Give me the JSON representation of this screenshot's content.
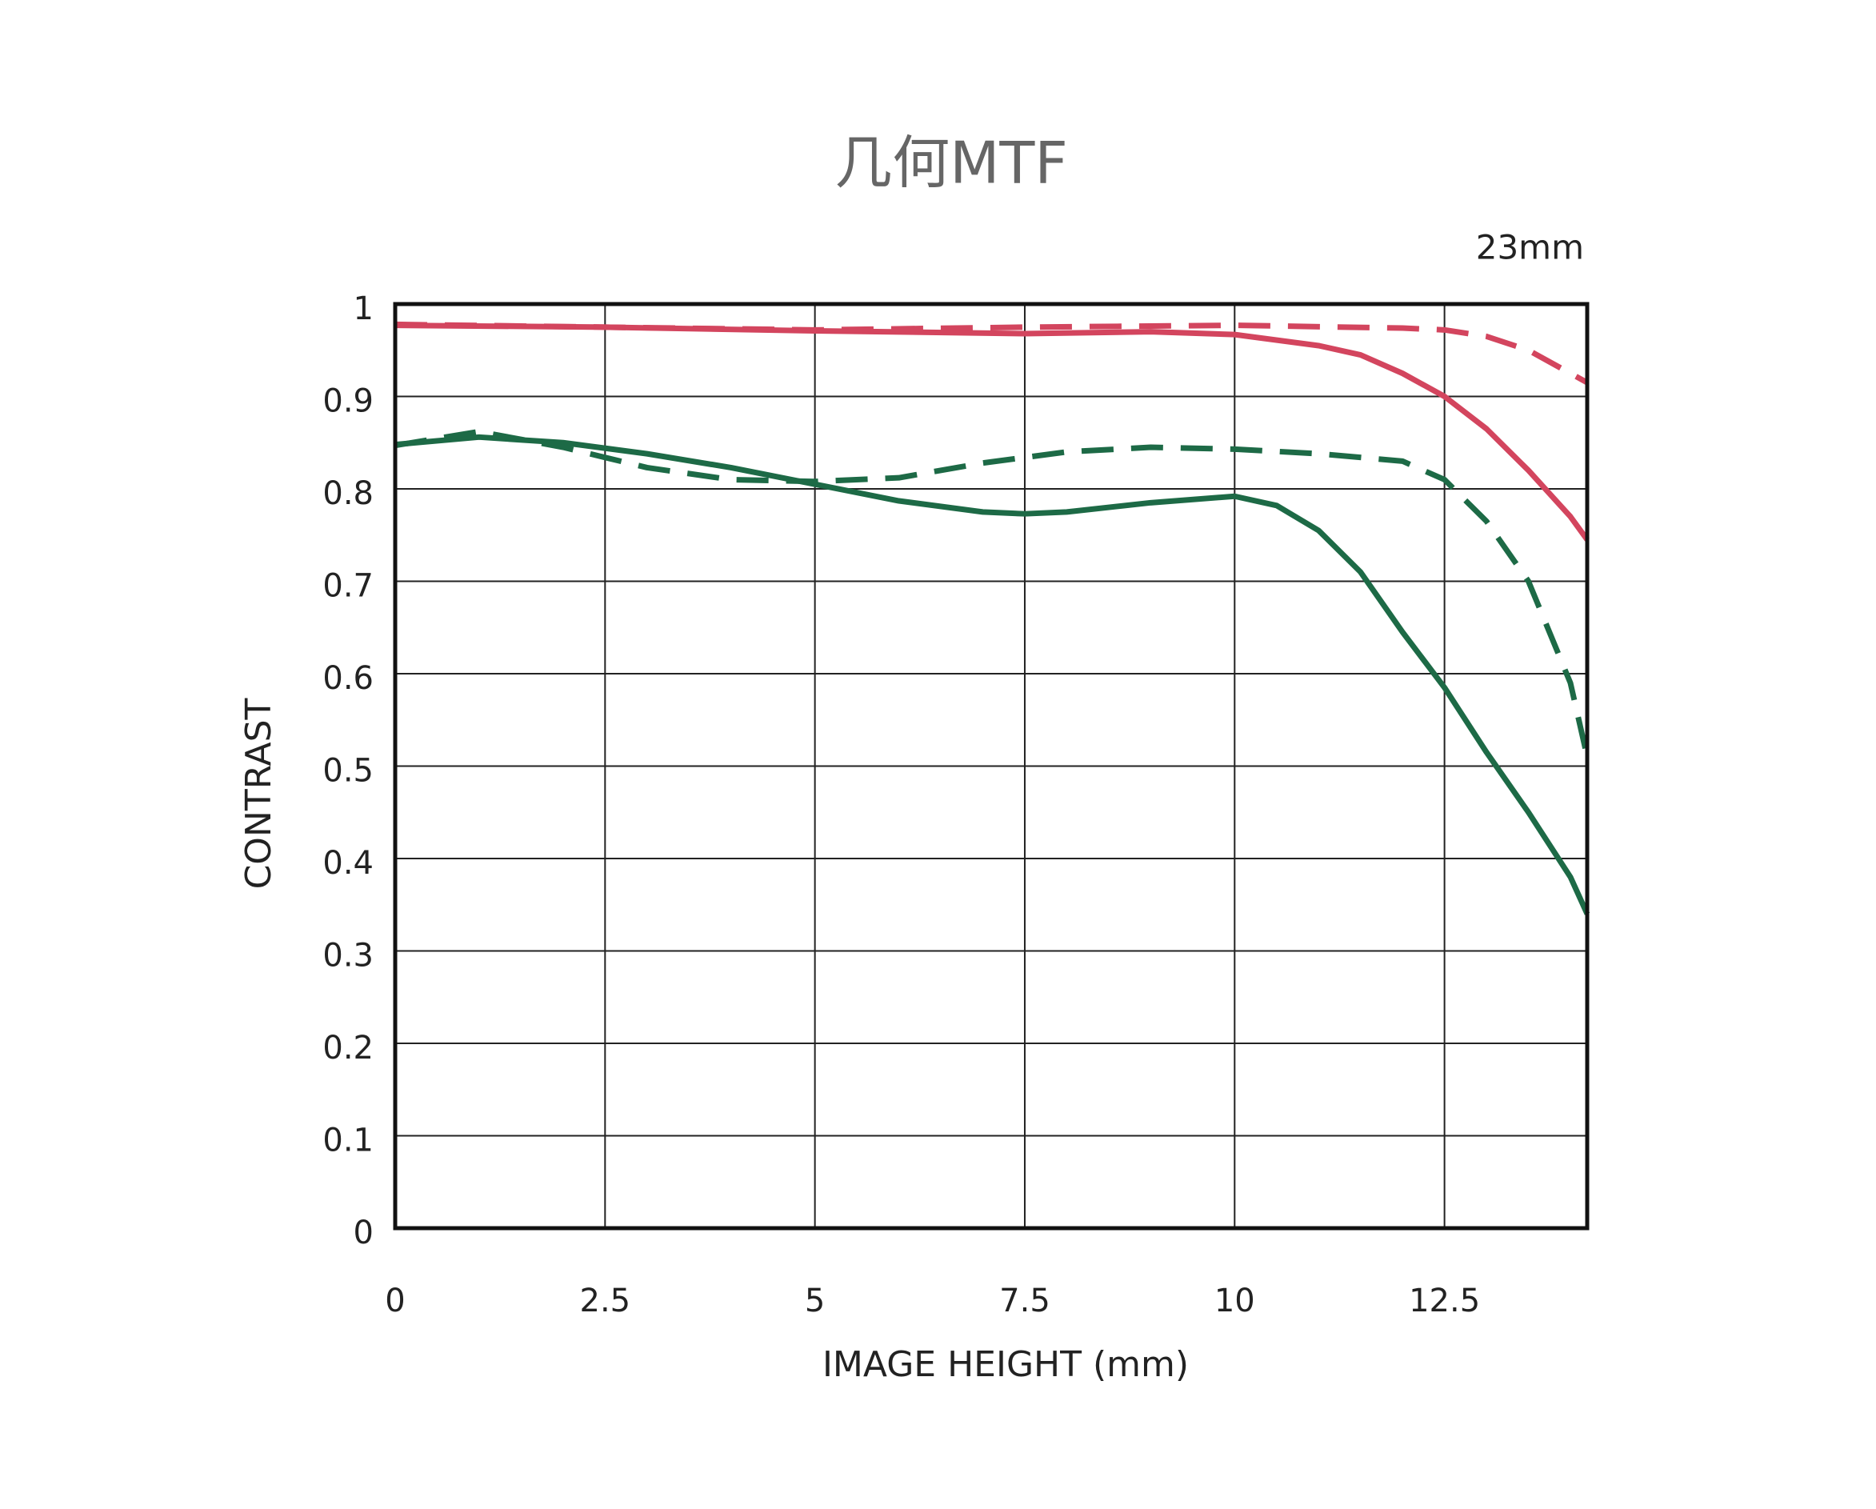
{
  "chart_data": {
    "type": "line",
    "title": "几何MTF",
    "annotation": "23mm",
    "xlabel": "IMAGE HEIGHT (mm)",
    "ylabel": "CONTRAST",
    "xlim": [
      0,
      14.2
    ],
    "xticks": [
      0,
      2.5,
      5,
      7.5,
      10,
      12.5
    ],
    "ylim": [
      0,
      1
    ],
    "yticks": [
      0,
      0.1,
      0.2,
      0.3,
      0.4,
      0.5,
      0.6,
      0.7,
      0.8,
      0.9,
      1
    ],
    "grid": true,
    "series": [
      {
        "color": "#d3455e",
        "style": "solid",
        "x": [
          0,
          2.5,
          5,
          7.5,
          9,
          10,
          11,
          11.5,
          12,
          12.5,
          13,
          13.5,
          14,
          14.2
        ],
        "values": [
          0.977,
          0.975,
          0.971,
          0.968,
          0.97,
          0.967,
          0.955,
          0.945,
          0.925,
          0.9,
          0.865,
          0.82,
          0.77,
          0.745
        ]
      },
      {
        "color": "#d3455e",
        "style": "dashed",
        "x": [
          0,
          2.5,
          5,
          7.5,
          10,
          12,
          12.5,
          13,
          13.5,
          14,
          14.2
        ],
        "values": [
          0.978,
          0.975,
          0.972,
          0.975,
          0.977,
          0.974,
          0.972,
          0.965,
          0.95,
          0.925,
          0.915
        ]
      },
      {
        "color": "#1d6a46",
        "style": "solid",
        "x": [
          0,
          1,
          2,
          3,
          4,
          5,
          6,
          7,
          7.5,
          8,
          9,
          10,
          10.5,
          11,
          11.5,
          12,
          12.5,
          13,
          13.5,
          14,
          14.2
        ],
        "values": [
          0.848,
          0.856,
          0.85,
          0.838,
          0.823,
          0.805,
          0.787,
          0.775,
          0.773,
          0.775,
          0.785,
          0.792,
          0.782,
          0.755,
          0.71,
          0.645,
          0.585,
          0.515,
          0.45,
          0.38,
          0.34
        ]
      },
      {
        "color": "#1d6a46",
        "style": "dashed",
        "x": [
          0,
          1,
          2,
          3,
          4,
          5,
          6,
          7,
          8,
          9,
          10,
          11,
          12,
          12.5,
          13,
          13.5,
          14,
          14.2
        ],
        "values": [
          0.847,
          0.862,
          0.845,
          0.823,
          0.81,
          0.808,
          0.812,
          0.828,
          0.84,
          0.845,
          0.843,
          0.838,
          0.83,
          0.81,
          0.765,
          0.7,
          0.59,
          0.51
        ]
      }
    ]
  }
}
